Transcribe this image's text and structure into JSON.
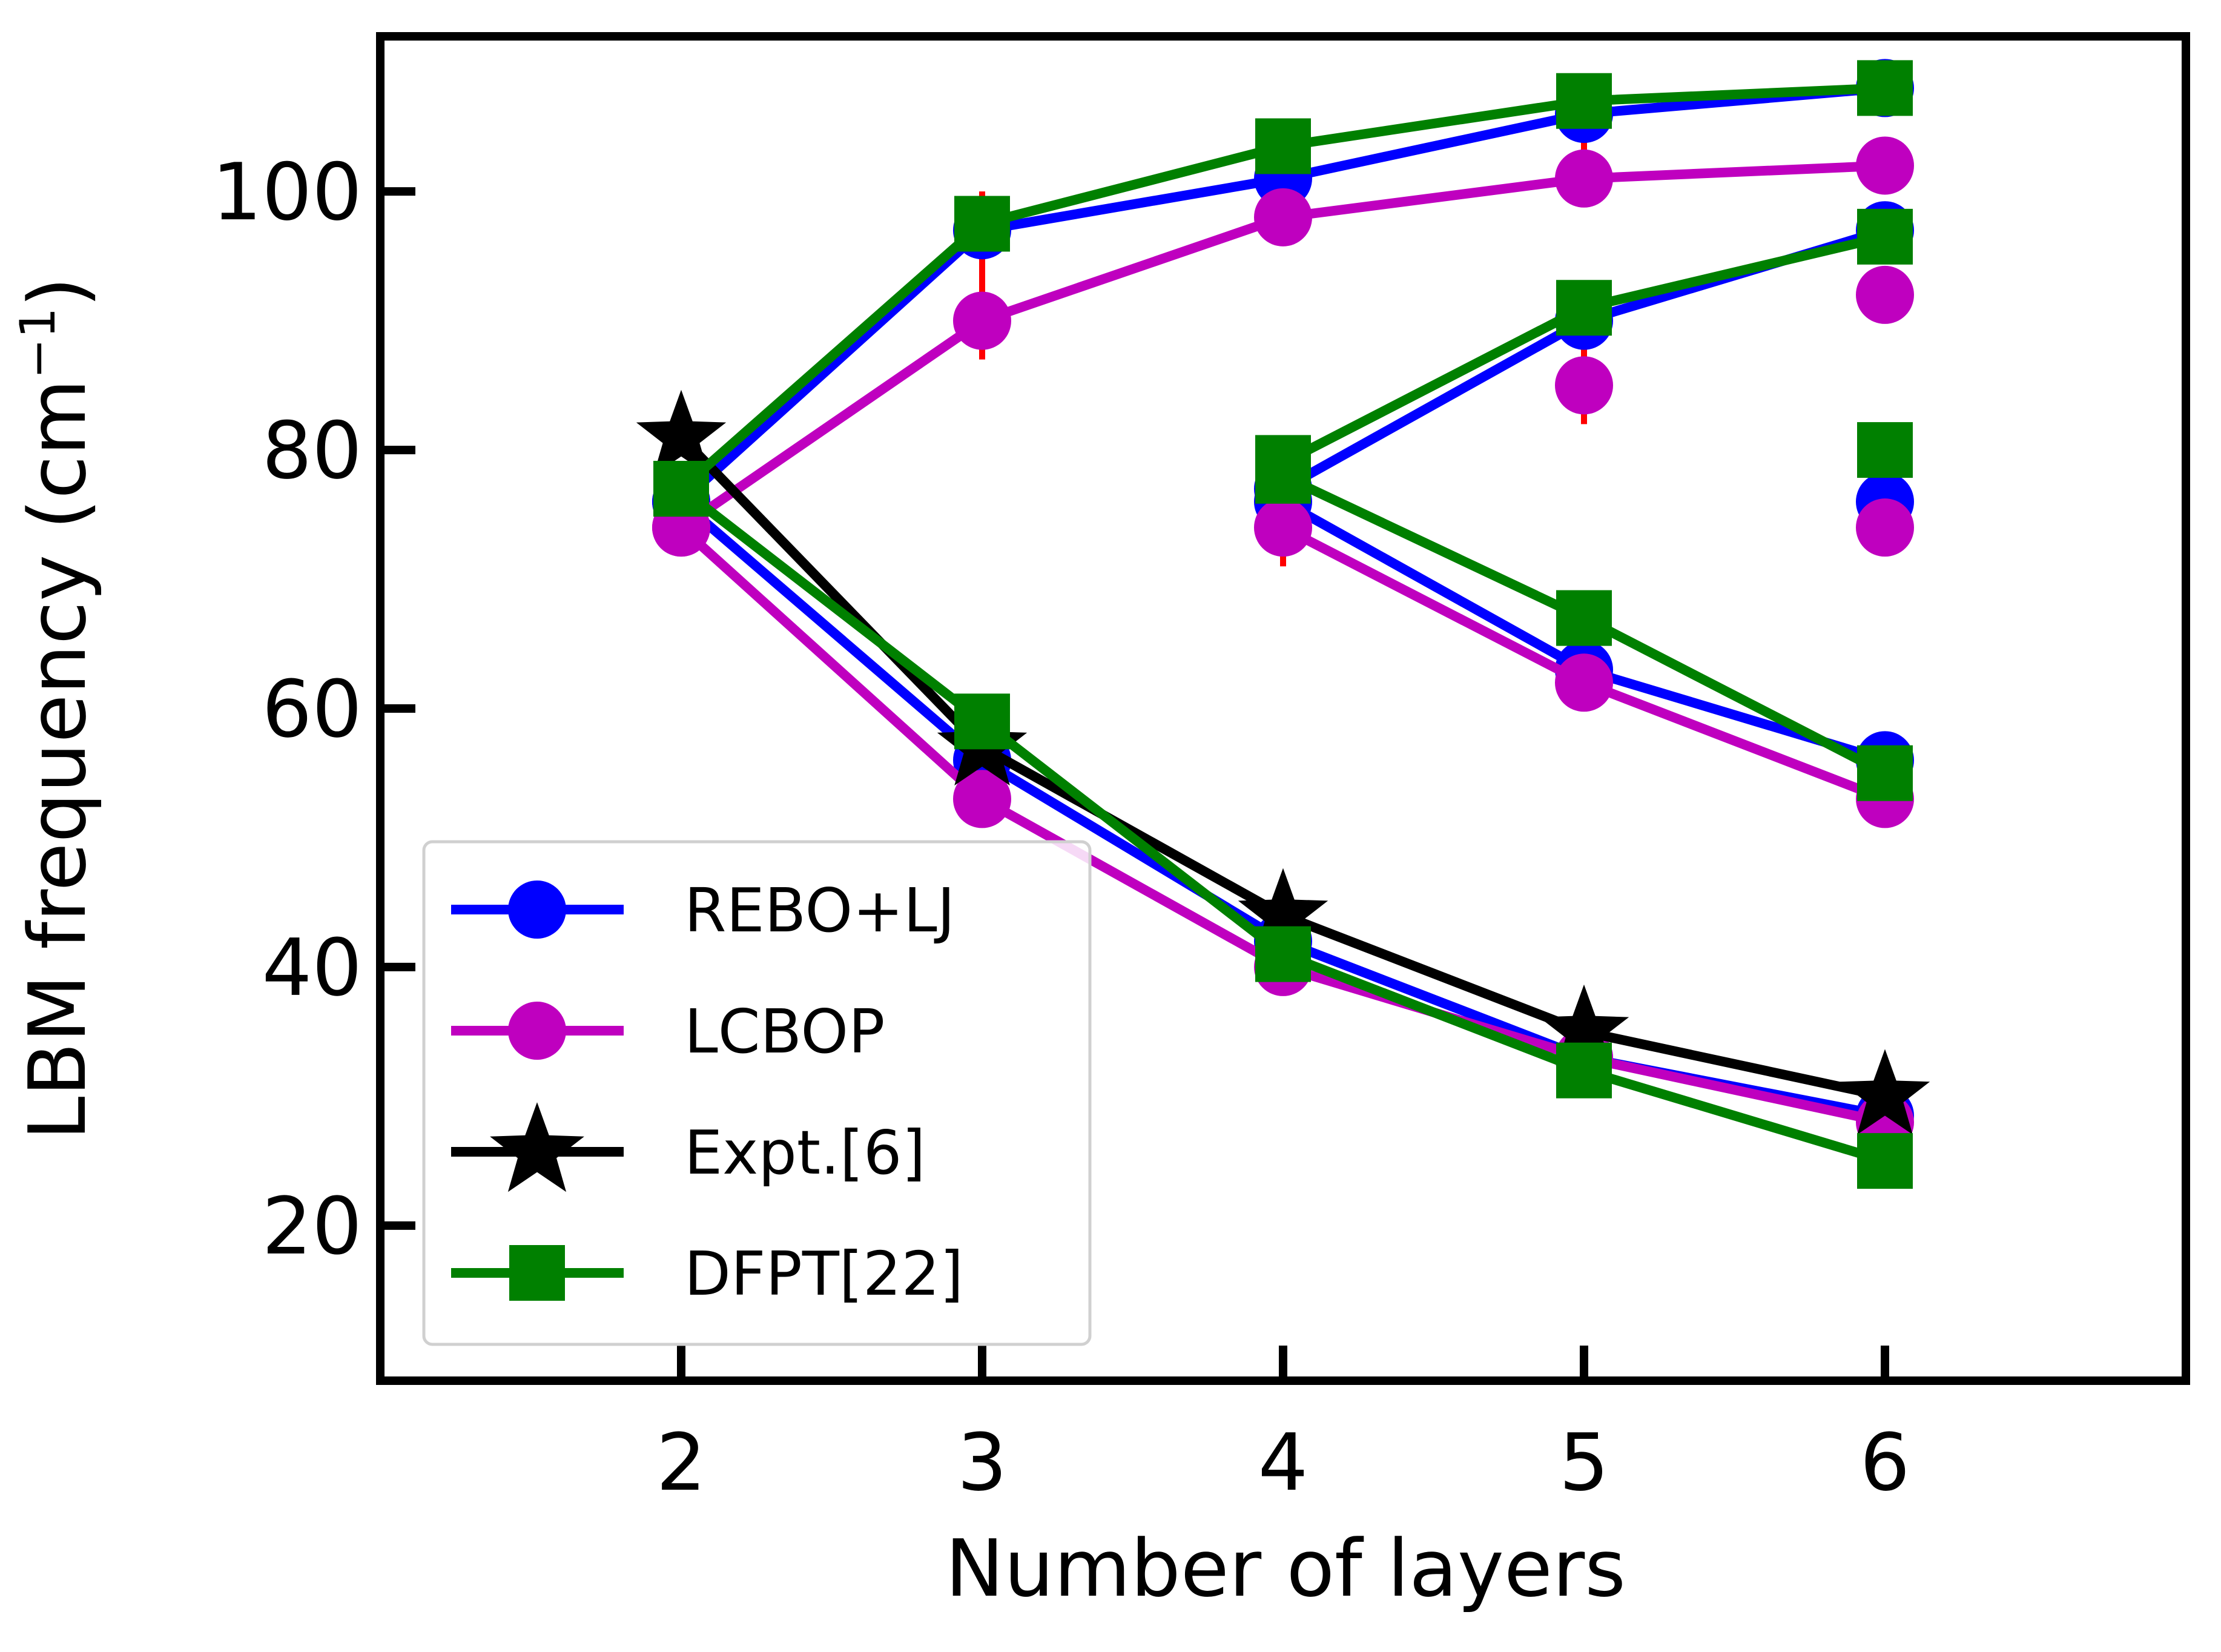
{
  "chart_data": {
    "type": "line",
    "xlabel": "Number of layers",
    "ylabel": "LBM frequency (cm",
    "ylabel_sup": "−1",
    "ylabel_close": ")",
    "xlim": [
      1,
      7
    ],
    "ylim": [
      8,
      112
    ],
    "xticks": [
      2,
      3,
      4,
      5,
      6
    ],
    "yticks": [
      20,
      40,
      60,
      80,
      100
    ],
    "legend_position": "lower-left",
    "series": [
      {
        "name": "REBO+LJ",
        "color": "#0000ff",
        "marker": "circle",
        "branches": [
          {
            "x": [
              2,
              3,
              4,
              5,
              6
            ],
            "y": [
              76,
              56,
              42,
              33,
              28.5
            ]
          },
          {
            "x": [
              2,
              3,
              4,
              5,
              6
            ],
            "y": [
              76,
              97,
              101,
              106,
              108
            ]
          },
          {
            "x": [
              4,
              5,
              6
            ],
            "y": [
              77,
              90,
              97
            ]
          },
          {
            "x": [
              4,
              5,
              6
            ],
            "y": [
              76,
              63,
              56
            ]
          },
          {
            "x": [
              6
            ],
            "y": [
              76
            ]
          }
        ]
      },
      {
        "name": "LCBOP",
        "color": "#bf00bf",
        "marker": "circle",
        "branches": [
          {
            "x": [
              2,
              3,
              4,
              5,
              6
            ],
            "y": [
              74,
              53,
              40,
              33,
              28
            ]
          },
          {
            "x": [
              2,
              3,
              4,
              5,
              6
            ],
            "y": [
              74,
              90,
              98,
              101,
              102
            ]
          },
          {
            "x": [
              4,
              5,
              6
            ],
            "y": [
              74,
              62,
              53
            ]
          },
          {
            "x": [
              5
            ],
            "y": [
              85
            ]
          },
          {
            "x": [
              6
            ],
            "y": [
              92
            ]
          },
          {
            "x": [
              6
            ],
            "y": [
              74
            ]
          }
        ]
      },
      {
        "name": "Expt.[6]",
        "color": "#000000",
        "marker": "star",
        "branches": [
          {
            "x": [
              2,
              3,
              4,
              5,
              6
            ],
            "y": [
              81,
              57,
              44,
              35,
              30
            ]
          }
        ]
      },
      {
        "name": "DFPT[22]",
        "color": "#008000",
        "marker": "square",
        "branches": [
          {
            "x": [
              2,
              3,
              4,
              5,
              6
            ],
            "y": [
              77,
              59,
              41,
              32,
              25
            ]
          },
          {
            "x": [
              2,
              3,
              4,
              5,
              6
            ],
            "y": [
              77,
              97.5,
              103.5,
              107,
              108
            ]
          },
          {
            "x": [
              4,
              5,
              6
            ],
            "y": [
              79,
              91,
              96.5
            ]
          },
          {
            "x": [
              4,
              5,
              6
            ],
            "y": [
              78,
              67,
              55
            ]
          },
          {
            "x": [
              6
            ],
            "y": [
              80
            ]
          }
        ]
      }
    ],
    "error_bars": {
      "color": "#ff0000",
      "points": [
        {
          "x": 3,
          "low": 87,
          "high": 100
        },
        {
          "x": 5,
          "low": 82,
          "high": 88
        },
        {
          "x": 4,
          "low": 71,
          "high": 77
        },
        {
          "x": 5,
          "low": 99,
          "high": 104
        }
      ]
    }
  }
}
